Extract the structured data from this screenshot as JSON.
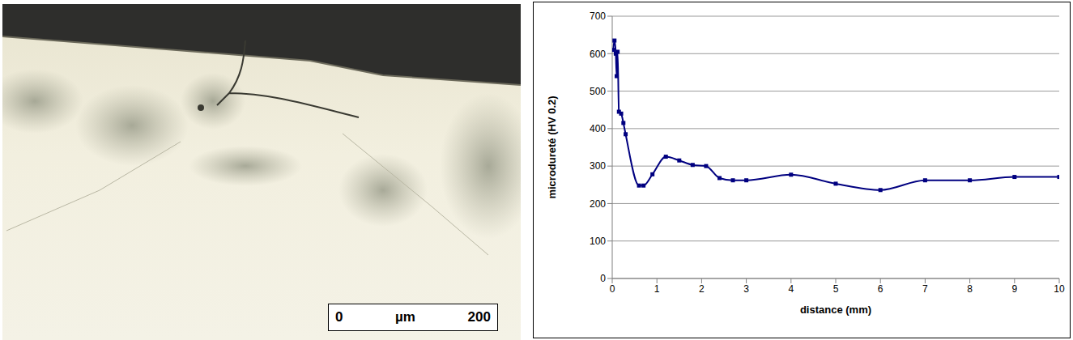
{
  "image": {
    "scale_bar": {
      "start": "0",
      "unit": "µm",
      "end": "200"
    }
  },
  "chart_data": {
    "type": "line",
    "x_label": "distance (mm)",
    "y_label": "microdureté (HV 0.2)",
    "x": [
      0.02,
      0.05,
      0.08,
      0.1,
      0.12,
      0.15,
      0.2,
      0.25,
      0.3,
      0.6,
      0.7,
      0.9,
      1.2,
      1.5,
      1.8,
      2.1,
      2.4,
      2.7,
      3,
      4,
      5,
      6,
      7,
      8,
      9,
      10
    ],
    "values": [
      610,
      635,
      600,
      540,
      605,
      445,
      440,
      415,
      385,
      248,
      248,
      278,
      325,
      315,
      303,
      300,
      268,
      262,
      262,
      277,
      253,
      236,
      262,
      262,
      271,
      271
    ],
    "color": "#000080",
    "marker": "square",
    "line_style": "smooth",
    "xlim": [
      0,
      10
    ],
    "xticks": [
      0,
      1,
      2,
      3,
      4,
      5,
      6,
      7,
      8,
      9,
      10
    ],
    "ylim": [
      0,
      700
    ],
    "yticks": [
      0,
      100,
      200,
      300,
      400,
      500,
      600,
      700
    ],
    "grid": true
  }
}
